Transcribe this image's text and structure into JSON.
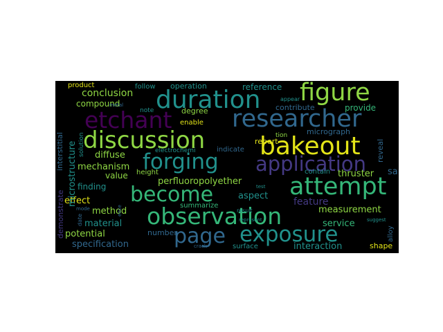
{
  "word_cloud": {
    "colors": {
      "background": "#000000",
      "yellow": "#e3e418",
      "lime": "#8fd744",
      "green": "#35b779",
      "teal": "#21918c",
      "blue": "#31688e",
      "indigo": "#443983",
      "purple": "#440154"
    },
    "words": [
      "duration",
      "figure",
      "researcher",
      "etchant",
      "discussion",
      "bakeout",
      "forging",
      "application",
      "attempt",
      "become",
      "observation",
      "page",
      "exposure",
      "conclusion",
      "compound",
      "product",
      "follow",
      "operation",
      "reference",
      "degree",
      "enable",
      "report",
      "micrograph",
      "diffuse",
      "mechanism",
      "value",
      "height",
      "indicate",
      "electrochemi",
      "thruster",
      "sample",
      "reveal",
      "provide",
      "contribute",
      "note",
      "perfluoropolyether",
      "finding",
      "effect",
      "method",
      "aspect",
      "feature",
      "measurement",
      "summarize",
      "material",
      "number",
      "service",
      "potential",
      "specification",
      "surface",
      "interaction",
      "shape",
      "alloy",
      "microstructure",
      "demonstrate",
      "interstitial",
      "solution",
      "date",
      "contain",
      "tion",
      "suggest",
      "test",
      "represent",
      "appear",
      "result",
      "crack",
      "metal",
      "mode",
      "ence"
    ]
  }
}
